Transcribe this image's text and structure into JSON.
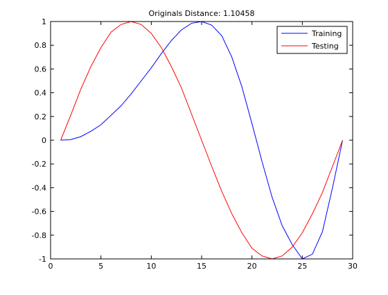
{
  "chart_data": {
    "type": "line",
    "title": "Originals Distance:  1.10458",
    "xlabel": "",
    "ylabel": "",
    "xlim": [
      0,
      30
    ],
    "ylim": [
      -1,
      1
    ],
    "xticks": [
      0,
      5,
      10,
      15,
      20,
      25,
      30
    ],
    "yticks": [
      -1,
      -0.8,
      -0.6,
      -0.4,
      -0.2,
      0,
      0.2,
      0.4,
      0.6,
      0.8,
      1
    ],
    "xtick_labels": [
      "0",
      "5",
      "10",
      "15",
      "20",
      "25",
      "30"
    ],
    "ytick_labels": [
      "-1",
      "-0.8",
      "-0.6",
      "-0.4",
      "-0.2",
      "0",
      "0.2",
      "0.4",
      "0.6",
      "0.8",
      "1"
    ],
    "grid": false,
    "legend_position": "top-right",
    "series": [
      {
        "name": "Training",
        "color": "#0000ff",
        "x": [
          1,
          2,
          3,
          4,
          5,
          6,
          7,
          8,
          9,
          10,
          11,
          12,
          13,
          14,
          15,
          16,
          17,
          18,
          19,
          20,
          21,
          22,
          23,
          24,
          25,
          26,
          27,
          28,
          29
        ],
        "y": [
          0,
          0.005,
          0.03,
          0.075,
          0.13,
          0.21,
          0.29,
          0.39,
          0.5,
          0.61,
          0.73,
          0.84,
          0.93,
          0.985,
          1,
          0.97,
          0.88,
          0.7,
          0.45,
          0.14,
          -0.18,
          -0.48,
          -0.72,
          -0.88,
          -1,
          -0.96,
          -0.77,
          -0.4,
          0
        ]
      },
      {
        "name": "Testing",
        "color": "#ff0000",
        "x": [
          1,
          2,
          3,
          4,
          5,
          6,
          7,
          8,
          9,
          10,
          11,
          12,
          13,
          14,
          15,
          16,
          17,
          18,
          19,
          20,
          21,
          22,
          23,
          24,
          25,
          26,
          27,
          28,
          29
        ],
        "y": [
          0,
          0.21,
          0.43,
          0.62,
          0.78,
          0.91,
          0.975,
          1,
          0.975,
          0.9,
          0.78,
          0.62,
          0.44,
          0.22,
          0,
          -0.22,
          -0.43,
          -0.62,
          -0.78,
          -0.91,
          -0.975,
          -1,
          -0.975,
          -0.9,
          -0.78,
          -0.62,
          -0.44,
          -0.22,
          0
        ]
      }
    ]
  }
}
